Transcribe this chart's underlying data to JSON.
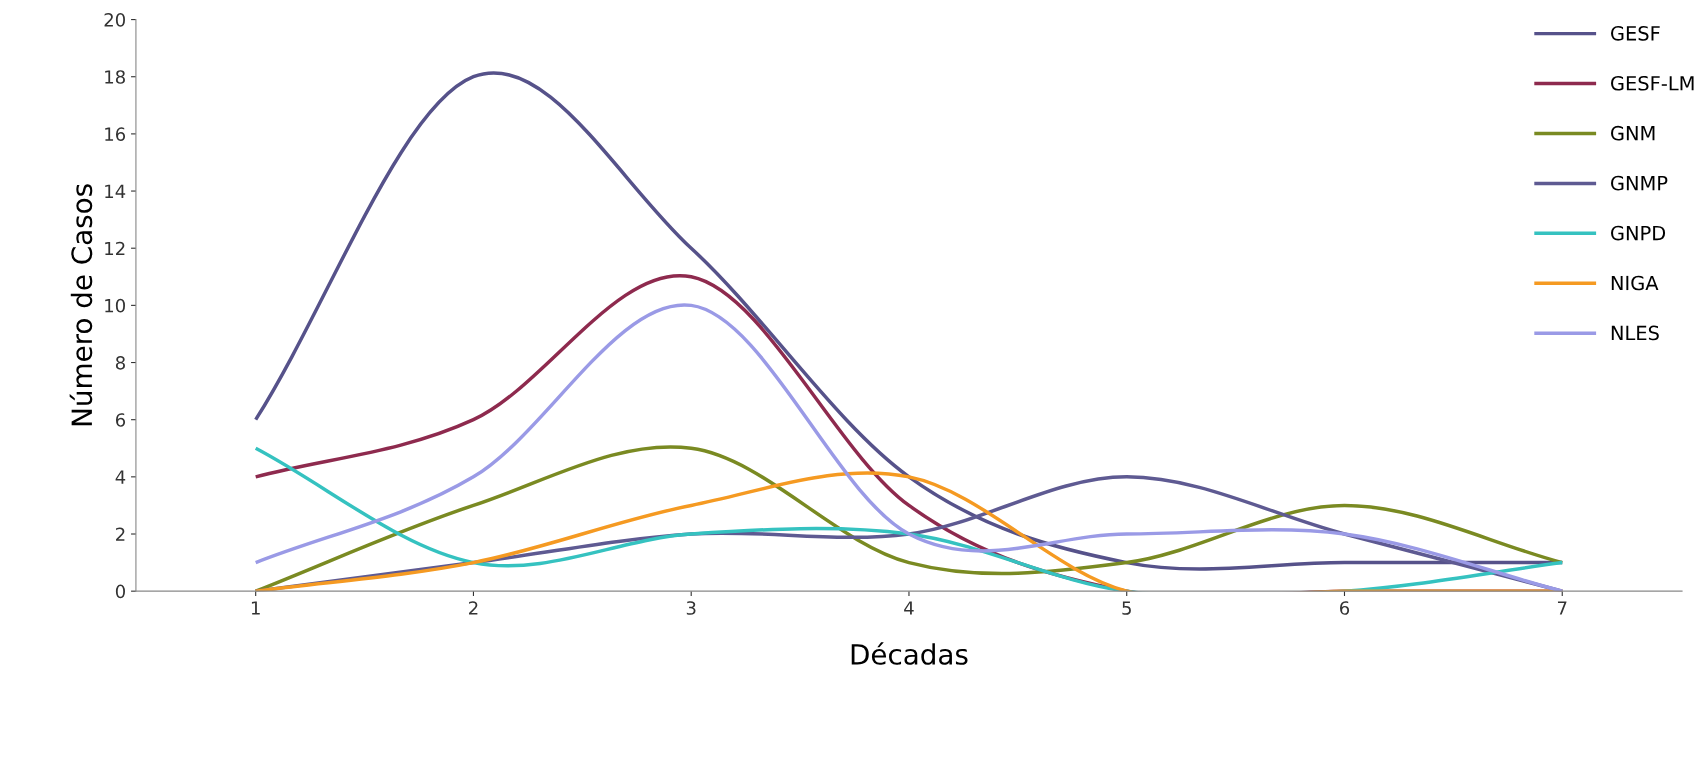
{
  "chart_data": {
    "type": "line",
    "xlabel": "Décadas",
    "ylabel": "Número de Casos",
    "categories": [
      "1",
      "2",
      "3",
      "4",
      "5",
      "6",
      "7"
    ],
    "ylim": [
      0,
      20
    ],
    "yticks": [
      0,
      2,
      4,
      6,
      8,
      10,
      12,
      14,
      16,
      18,
      20
    ],
    "grid": false,
    "legend": "top right",
    "marker": "none",
    "line_style": "solid",
    "series": [
      {
        "name": "GESF",
        "color": "#56528a",
        "values": [
          6,
          18,
          12,
          4,
          1,
          1,
          1
        ]
      },
      {
        "name": "GESF-LM",
        "color": "#8e2a4e",
        "values": [
          4,
          6,
          11,
          3,
          0,
          0,
          0
        ]
      },
      {
        "name": "GNM",
        "color": "#7a8a22",
        "values": [
          0,
          3,
          5,
          1,
          1,
          3,
          1
        ]
      },
      {
        "name": "GNMP",
        "color": "#5e5a92",
        "values": [
          0,
          1,
          2,
          2,
          4,
          2,
          0
        ]
      },
      {
        "name": "GNPD",
        "color": "#35c2c0",
        "values": [
          5,
          1,
          2,
          2,
          0,
          0,
          1
        ]
      },
      {
        "name": "NIGA",
        "color": "#f59a22",
        "values": [
          0,
          1,
          3,
          4,
          0,
          0,
          0
        ]
      },
      {
        "name": "NLES",
        "color": "#9a9ae6",
        "values": [
          1,
          4,
          10,
          2,
          2,
          2,
          0
        ]
      }
    ]
  }
}
